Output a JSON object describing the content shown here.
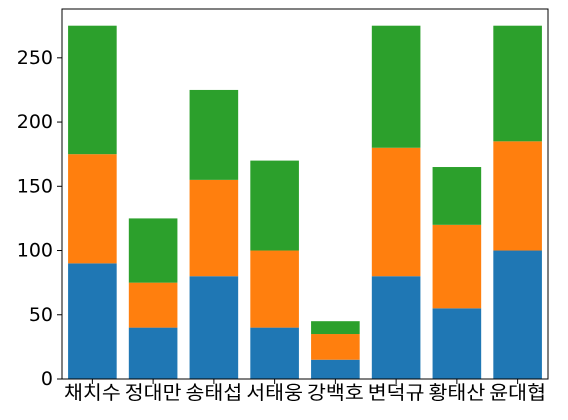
{
  "chart_data": {
    "type": "bar",
    "stacked": true,
    "categories": [
      "채치수",
      "정대만",
      "송태섭",
      "서태웅",
      "강백호",
      "변덕규",
      "황태산",
      "윤대협"
    ],
    "series": [
      {
        "color": "#1f77b4",
        "values": [
          90,
          40,
          80,
          40,
          15,
          80,
          55,
          100
        ]
      },
      {
        "color": "#ff7f0e",
        "values": [
          85,
          35,
          75,
          60,
          20,
          100,
          65,
          85
        ]
      },
      {
        "color": "#2ca02c",
        "values": [
          100,
          50,
          70,
          70,
          10,
          95,
          45,
          90
        ]
      }
    ],
    "ylim": [
      0,
      288
    ],
    "yticks": [
      0,
      50,
      100,
      150,
      200,
      250
    ],
    "title": "",
    "xlabel": "",
    "ylabel": "",
    "grid": false,
    "legend": false
  }
}
